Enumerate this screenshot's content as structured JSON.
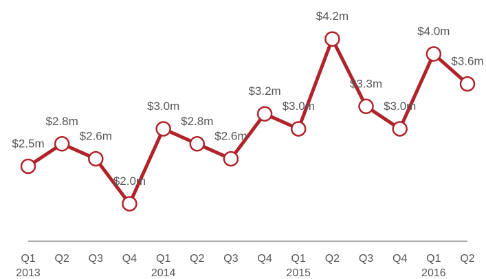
{
  "chart_data": {
    "type": "line",
    "categories": [
      "Q1",
      "Q2",
      "Q3",
      "Q4",
      "Q1",
      "Q2",
      "Q3",
      "Q4",
      "Q1",
      "Q2",
      "Q3",
      "Q4",
      "Q1",
      "Q2"
    ],
    "years": [
      "2013",
      null,
      null,
      null,
      "2014",
      null,
      null,
      null,
      "2015",
      null,
      null,
      null,
      "2016",
      null
    ],
    "series": [
      {
        "color": "#b0232a",
        "values": [
          2.5,
          2.8,
          2.6,
          2.0,
          3.0,
          2.8,
          2.6,
          3.2,
          3.0,
          4.2,
          3.3,
          3.0,
          4.0,
          3.6
        ],
        "value_labels": [
          "$2.5m",
          "$2.8m",
          "$2.6m",
          "$2.0m",
          "$3.0m",
          "$2.8m",
          "$2.6m",
          "$3.2m",
          "$3.0m",
          "$4.2m",
          "$3.3m",
          "$3.0m",
          "$4.0m",
          "$3.6m"
        ]
      }
    ],
    "ylim": [
      1.5,
      4.5
    ]
  }
}
